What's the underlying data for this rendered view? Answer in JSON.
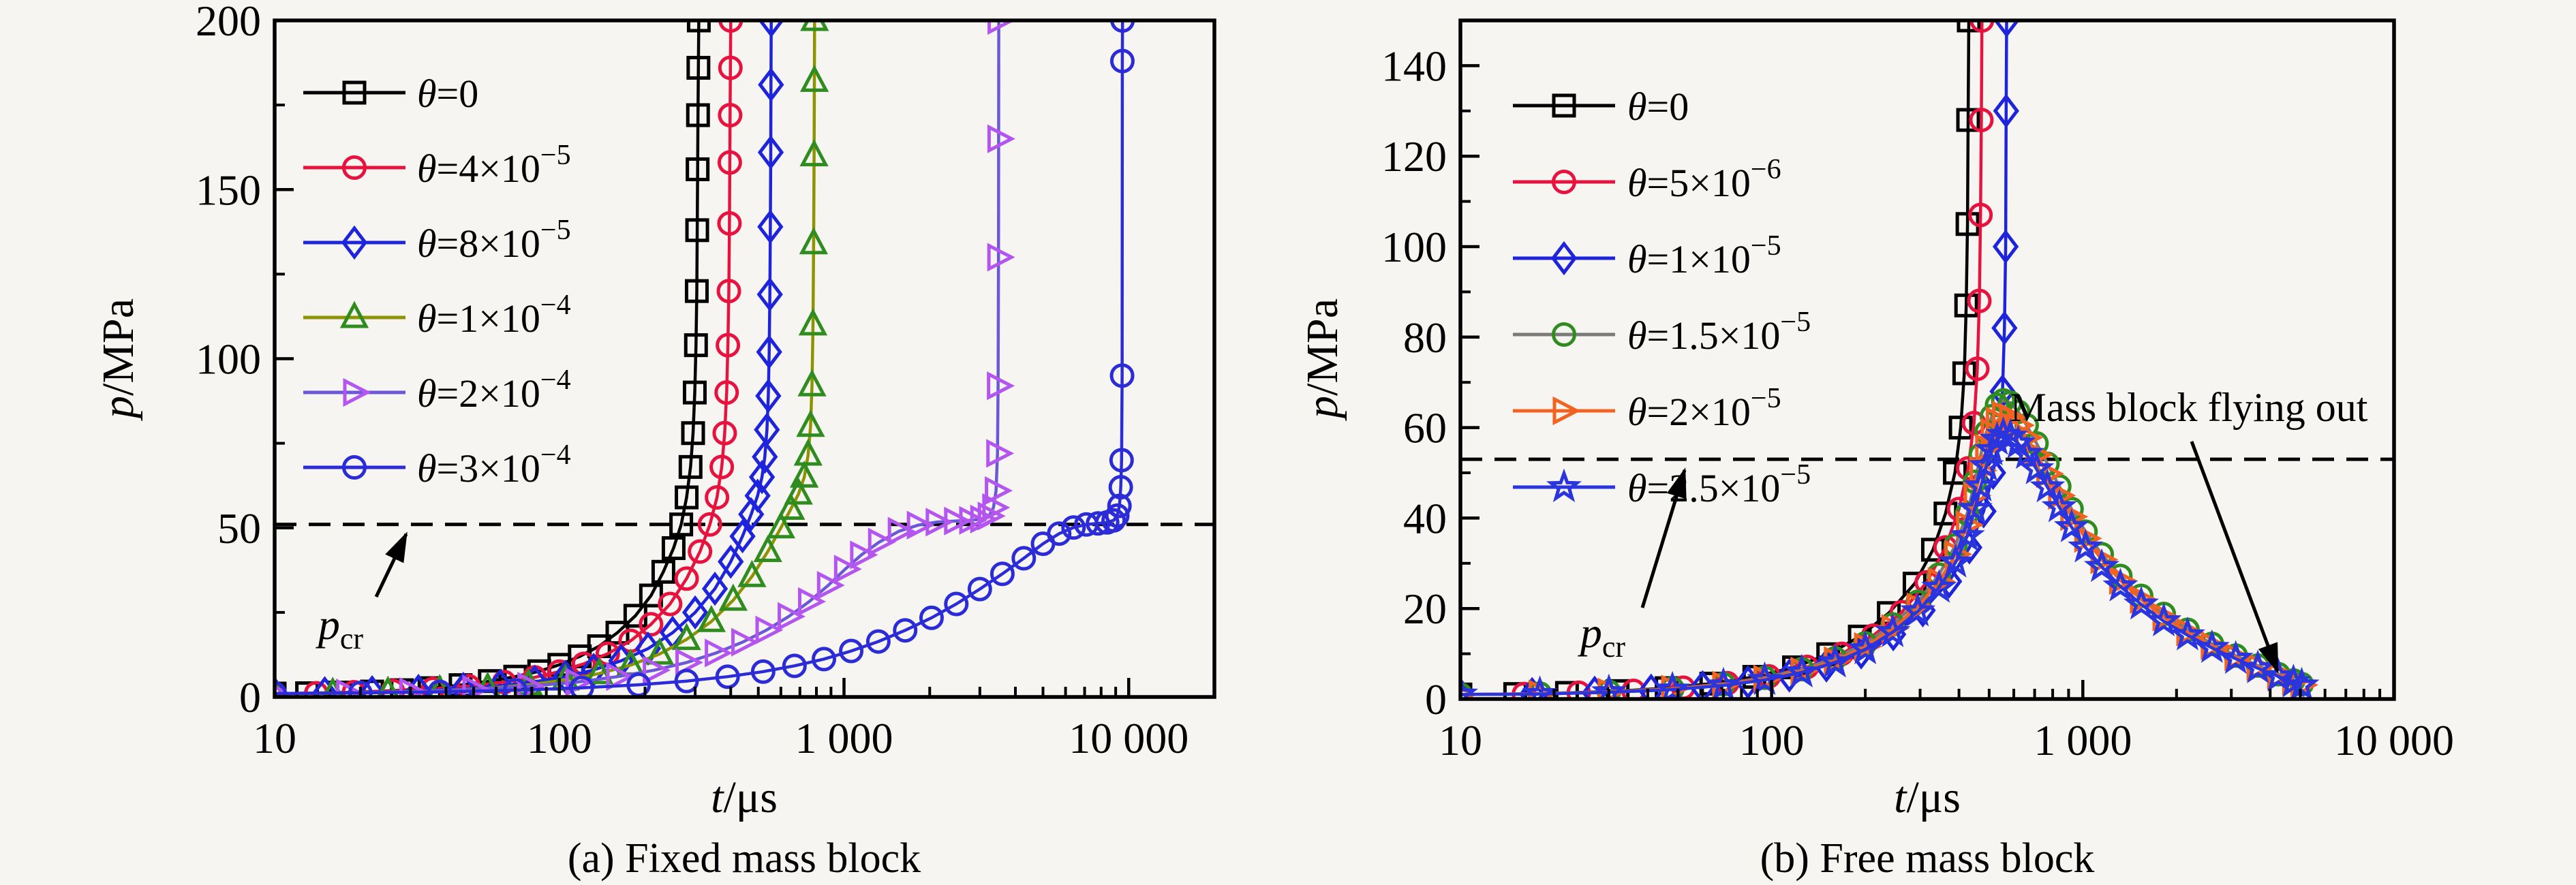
{
  "figure": {
    "background": "#f6f5f2",
    "foreground": "#000000"
  },
  "chart_data": [
    {
      "type": "line",
      "title": "(a) Fixed mass block",
      "xlabel": "t/μs",
      "xlabel_var": "t",
      "xlabel_rest": "/μs",
      "ylabel": "p/MPa",
      "ylabel_var": "p",
      "ylabel_rest": "/MPa",
      "xscale": "log",
      "xlim": [
        10,
        20000
      ],
      "ylim": [
        0,
        200
      ],
      "grid": false,
      "legend_position": "upper left",
      "xticks": {
        "values": [
          10,
          100,
          1000,
          10000
        ],
        "labels": [
          "10",
          "100",
          "1 000",
          "10 000"
        ]
      },
      "yticks": {
        "values": [
          0,
          50,
          100,
          150,
          200
        ],
        "labels": [
          "0",
          "50",
          "100",
          "150",
          "200"
        ]
      },
      "yminor_step": 25,
      "pcr": {
        "var": "p",
        "sub": "cr",
        "label": "p_cr",
        "line_y": 51
      },
      "series": [
        {
          "name": "theta-0",
          "label": "θ=0",
          "label_pre": "=0",
          "label_exp": null,
          "marker": "square",
          "line_color": "#000000",
          "marker_color": "#000000",
          "x": [
            10,
            13,
            17,
            22,
            28,
            35,
            45,
            57,
            70,
            85,
            100,
            118,
            138,
            160,
            185,
            210,
            232,
            252,
            268,
            280,
            289,
            295,
            299,
            302,
            304,
            305,
            306,
            307,
            308,
            309
          ],
          "y": [
            1,
            1.1,
            1.3,
            1.6,
            2,
            2.6,
            3.5,
            4.7,
            6,
            7.6,
            9.5,
            12,
            15,
            19,
            24,
            30,
            37,
            44,
            51,
            59,
            68,
            78,
            90,
            104,
            120,
            138,
            156,
            172,
            186,
            200
          ]
        },
        {
          "name": "theta-4e-5",
          "label": "θ=4×10⁻⁵",
          "label_pre": "=4×10",
          "label_exp": "−5",
          "marker": "circle",
          "line_color": "#e8123f",
          "marker_color": "#e8123f",
          "x": [
            10,
            14,
            19,
            26,
            36,
            48,
            64,
            82,
            100,
            122,
            148,
            178,
            210,
            245,
            280,
            312,
            338,
            358,
            372,
            381,
            387,
            391,
            394,
            396,
            397,
            398,
            399,
            400
          ],
          "y": [
            1,
            1.1,
            1.4,
            1.8,
            2.4,
            3.2,
            4.4,
            5.8,
            7.5,
            9.8,
            12.8,
            16.6,
            21.5,
            27.5,
            35,
            43,
            51,
            59,
            68,
            78,
            90,
            104,
            120,
            140,
            158,
            172,
            186,
            200
          ]
        },
        {
          "name": "theta-8e-5",
          "label": "θ=8×10⁻⁵",
          "label_pre": "=8×10",
          "label_exp": "−5",
          "marker": "diamond",
          "line_color": "#1e24dc",
          "marker_color": "#1e24dc",
          "x": [
            10,
            15,
            22,
            32,
            46,
            62,
            82,
            105,
            132,
            165,
            205,
            250,
            300,
            352,
            400,
            440,
            472,
            497,
            515,
            527,
            536,
            542,
            546,
            549,
            551,
            553,
            554,
            555
          ],
          "y": [
            1,
            1.1,
            1.4,
            1.8,
            2.4,
            3.3,
            4.5,
            6,
            8,
            10.7,
            14.3,
            19,
            25,
            32,
            40,
            47.5,
            54,
            59.5,
            65,
            71,
            79,
            89,
            102,
            119,
            139,
            161,
            181,
            200
          ]
        },
        {
          "name": "theta-1e-4",
          "label": "θ=1×10⁻⁴",
          "label_pre": "=1×10",
          "label_exp": "−4",
          "marker": "triangle",
          "line_color": "#8e9400",
          "marker_color": "#2f8c1f",
          "x": [
            10,
            16,
            25,
            38,
            56,
            78,
            105,
            138,
            178,
            225,
            280,
            342,
            408,
            475,
            540,
            600,
            650,
            692,
            725,
            748,
            763,
            772,
            778,
            782,
            785,
            787,
            788
          ],
          "y": [
            1,
            1.1,
            1.4,
            1.9,
            2.6,
            3.6,
            5,
            6.9,
            9.4,
            12.7,
            17,
            22.3,
            28.6,
            35.6,
            43,
            50,
            55.5,
            60,
            65,
            71.5,
            80,
            92,
            110,
            134,
            160,
            182,
            200
          ]
        },
        {
          "name": "theta-2e-4",
          "label": "θ=2×10⁻⁴",
          "label_pre": "=2×10",
          "label_exp": "−4",
          "marker": "rtriangle",
          "line_color": "#6a58d8",
          "marker_color": "#b455f0",
          "x": [
            10,
            18,
            30,
            50,
            78,
            115,
            160,
            215,
            280,
            355,
            440,
            535,
            640,
            755,
            880,
            1010,
            1150,
            1330,
            1560,
            1820,
            2120,
            2460,
            2780,
            3040,
            3230,
            3350,
            3420,
            3460,
            3478,
            3488,
            3493,
            3496
          ],
          "y": [
            1,
            1.2,
            1.6,
            2.3,
            3.2,
            4.4,
            6,
            7.9,
            10.2,
            13,
            16.2,
            19.8,
            23.8,
            28.2,
            33,
            37.8,
            42,
            45.8,
            49,
            50.8,
            51.7,
            52,
            52.2,
            52.6,
            53.5,
            56,
            61,
            72,
            92,
            130,
            165,
            200
          ]
        },
        {
          "name": "theta-3e-4",
          "label": "θ=3×10⁻⁴",
          "label_pre": "=3×10",
          "label_exp": "−4",
          "marker": "circle",
          "line_color": "#2b2bd8",
          "marker_color": "#2b2bd8",
          "x": [
            10,
            20,
            38,
            70,
            120,
            190,
            280,
            390,
            520,
            670,
            850,
            1060,
            1320,
            1640,
            2030,
            2480,
            3000,
            3600,
            4280,
            5000,
            5700,
            6400,
            7100,
            7800,
            8400,
            8850,
            9120,
            9280,
            9380,
            9440,
            9480,
            9500,
            9512
          ],
          "y": [
            1,
            1.2,
            1.5,
            2,
            2.7,
            3.6,
            4.7,
            6,
            7.5,
            9.2,
            11.2,
            13.6,
            16.4,
            19.7,
            23.4,
            27.5,
            31.9,
            36.4,
            41,
            45.3,
            48.3,
            50.1,
            51,
            51.3,
            51.6,
            52.2,
            53.6,
            56.5,
            62,
            70,
            95,
            188,
            200
          ]
        }
      ]
    },
    {
      "type": "line",
      "title": "(b) Free mass block",
      "xlabel": "t/μs",
      "xlabel_var": "t",
      "xlabel_rest": "/μs",
      "ylabel": "p/MPa",
      "ylabel_var": "p",
      "ylabel_rest": "/MPa",
      "xscale": "log",
      "xlim": [
        10,
        10000
      ],
      "ylim": [
        0,
        150
      ],
      "grid": false,
      "legend_position": "upper left",
      "xticks": {
        "values": [
          10,
          100,
          1000,
          10000
        ],
        "labels": [
          "10",
          "100",
          "1 000",
          "10 000"
        ]
      },
      "yticks": {
        "values": [
          0,
          20,
          40,
          60,
          80,
          100,
          120,
          140
        ],
        "labels": [
          "0",
          "20",
          "40",
          "60",
          "80",
          "100",
          "120",
          "140"
        ]
      },
      "yminor_step": 10,
      "pcr": {
        "var": "p",
        "sub": "cr",
        "label": "p_cr",
        "line_y": 53
      },
      "flyout_label": "Mass block flying out",
      "series": [
        {
          "name": "theta-0",
          "label": "θ=0",
          "label_pre": "=0",
          "label_exp": null,
          "marker": "square",
          "line_color": "#000000",
          "marker_color": "#000000",
          "x": [
            10,
            15,
            22,
            32,
            46,
            64,
            88,
            118,
            152,
            192,
            238,
            288,
            330,
            362,
            388,
            405,
            416,
            422,
            426,
            428,
            430
          ],
          "y": [
            1,
            1.1,
            1.35,
            1.75,
            2.4,
            3.4,
            4.9,
            7,
            9.9,
            13.8,
            19,
            25.5,
            33,
            41,
            50,
            60,
            72,
            87,
            105,
            128,
            150
          ]
        },
        {
          "name": "theta-5e-6",
          "label": "θ=5×10⁻⁶",
          "label_pre": "=5×10",
          "label_exp": "−6",
          "marker": "circle",
          "line_color": "#e8123f",
          "marker_color": "#e8123f",
          "x": [
            10,
            16,
            24,
            36,
            52,
            72,
            98,
            130,
            168,
            212,
            262,
            315,
            362,
            400,
            428,
            447,
            458,
            465,
            469,
            472,
            474
          ],
          "y": [
            1,
            1.1,
            1.4,
            1.8,
            2.5,
            3.5,
            5,
            7.1,
            10,
            14,
            19.2,
            25.8,
            33.5,
            42,
            51,
            61,
            73,
            88,
            107,
            128,
            150
          ]
        },
        {
          "name": "theta-1e-5",
          "label": "θ=1×10⁻⁵",
          "label_pre": "=1×10",
          "label_exp": "−5",
          "marker": "diamond",
          "line_color": "#1e24dc",
          "marker_color": "#1e24dc",
          "x": [
            10,
            17,
            27,
            41,
            60,
            84,
            114,
            150,
            194,
            246,
            306,
            372,
            432,
            480,
            515,
            538,
            552,
            560,
            565,
            567,
            569
          ],
          "y": [
            1,
            1.1,
            1.4,
            1.85,
            2.6,
            3.7,
            5.2,
            7.4,
            10.3,
            14.3,
            19.6,
            26,
            33.5,
            41.5,
            50,
            58.5,
            68,
            82,
            100,
            130,
            150
          ]
        },
        {
          "name": "theta-1.5e-5",
          "label": "θ=1.5×10⁻⁵",
          "label_pre": "=1.5×10",
          "label_exp": "−5",
          "marker": "circle",
          "line_color": "#7a7a7a",
          "marker_color": "#2f8c1f",
          "x": [
            10,
            18,
            30,
            48,
            70,
            95,
            125,
            160,
            200,
            245,
            295,
            345,
            390,
            425,
            450,
            470,
            490,
            510,
            530,
            555,
            585,
            620,
            660,
            710,
            770,
            840,
            920,
            1020,
            1150,
            1320,
            1540,
            1820,
            2170,
            2600,
            3100,
            3650,
            4250,
            4750,
            5050
          ],
          "y": [
            1,
            1.2,
            1.6,
            2.3,
            3.3,
            4.7,
            6.6,
            9,
            12.3,
            16.5,
            21.5,
            27.5,
            34,
            41,
            48,
            54,
            59,
            62.5,
            65,
            66,
            65.5,
            63.5,
            60.5,
            56.5,
            52,
            47,
            42,
            37,
            32,
            27.2,
            22.8,
            18.8,
            15.3,
            12.2,
            9.6,
            7.4,
            5.5,
            4.1,
            3.3
          ]
        },
        {
          "name": "theta-2e-5",
          "label": "θ=2×10⁻⁵",
          "label_pre": "=2×10",
          "label_exp": "−5",
          "marker": "rtriangle",
          "line_color": "#f26322",
          "marker_color": "#f26322",
          "x": [
            10,
            18,
            30,
            48,
            70,
            95,
            125,
            160,
            200,
            245,
            295,
            345,
            390,
            425,
            450,
            470,
            490,
            510,
            530,
            555,
            585,
            620,
            660,
            710,
            770,
            840,
            920,
            1020,
            1150,
            1320,
            1540,
            1820,
            2170,
            2600,
            3100,
            3650,
            4250,
            4750,
            5050
          ],
          "y": [
            1,
            1.15,
            1.55,
            2.2,
            3.1,
            4.4,
            6.2,
            8.5,
            11.6,
            15.6,
            20.4,
            26,
            32,
            38.5,
            45,
            50.5,
            55.5,
            59,
            61.5,
            62.8,
            62.3,
            60.5,
            57.8,
            54,
            49.8,
            45,
            40.3,
            35.5,
            30.8,
            26.2,
            22,
            18.1,
            14.8,
            11.8,
            9.3,
            7.1,
            5.2,
            3.9,
            3.1
          ]
        },
        {
          "name": "theta-2.5e-5",
          "label": "θ=2.5×10⁻⁵",
          "label_pre": "=2.5×10",
          "label_exp": "−5",
          "marker": "star",
          "line_color": "#2b35dd",
          "marker_color": "#2b35dd",
          "x": [
            10,
            18,
            30,
            48,
            70,
            95,
            125,
            160,
            200,
            245,
            295,
            345,
            390,
            425,
            450,
            470,
            490,
            510,
            530,
            555,
            585,
            620,
            660,
            710,
            770,
            840,
            920,
            1020,
            1150,
            1320,
            1540,
            1820,
            2170,
            2600,
            3100,
            3650,
            4250,
            4750,
            5050
          ],
          "y": [
            1,
            1.1,
            1.5,
            2.1,
            3,
            4.2,
            5.9,
            8.1,
            11,
            14.8,
            19.4,
            24.6,
            30.2,
            36,
            42,
            47,
            51.5,
            55,
            57.3,
            58.4,
            58,
            56.5,
            54.2,
            50.8,
            46.8,
            42.4,
            38,
            33.5,
            29.2,
            24.9,
            20.9,
            17.2,
            14.1,
            11.3,
            8.9,
            6.8,
            5,
            3.7,
            3
          ]
        }
      ]
    }
  ]
}
